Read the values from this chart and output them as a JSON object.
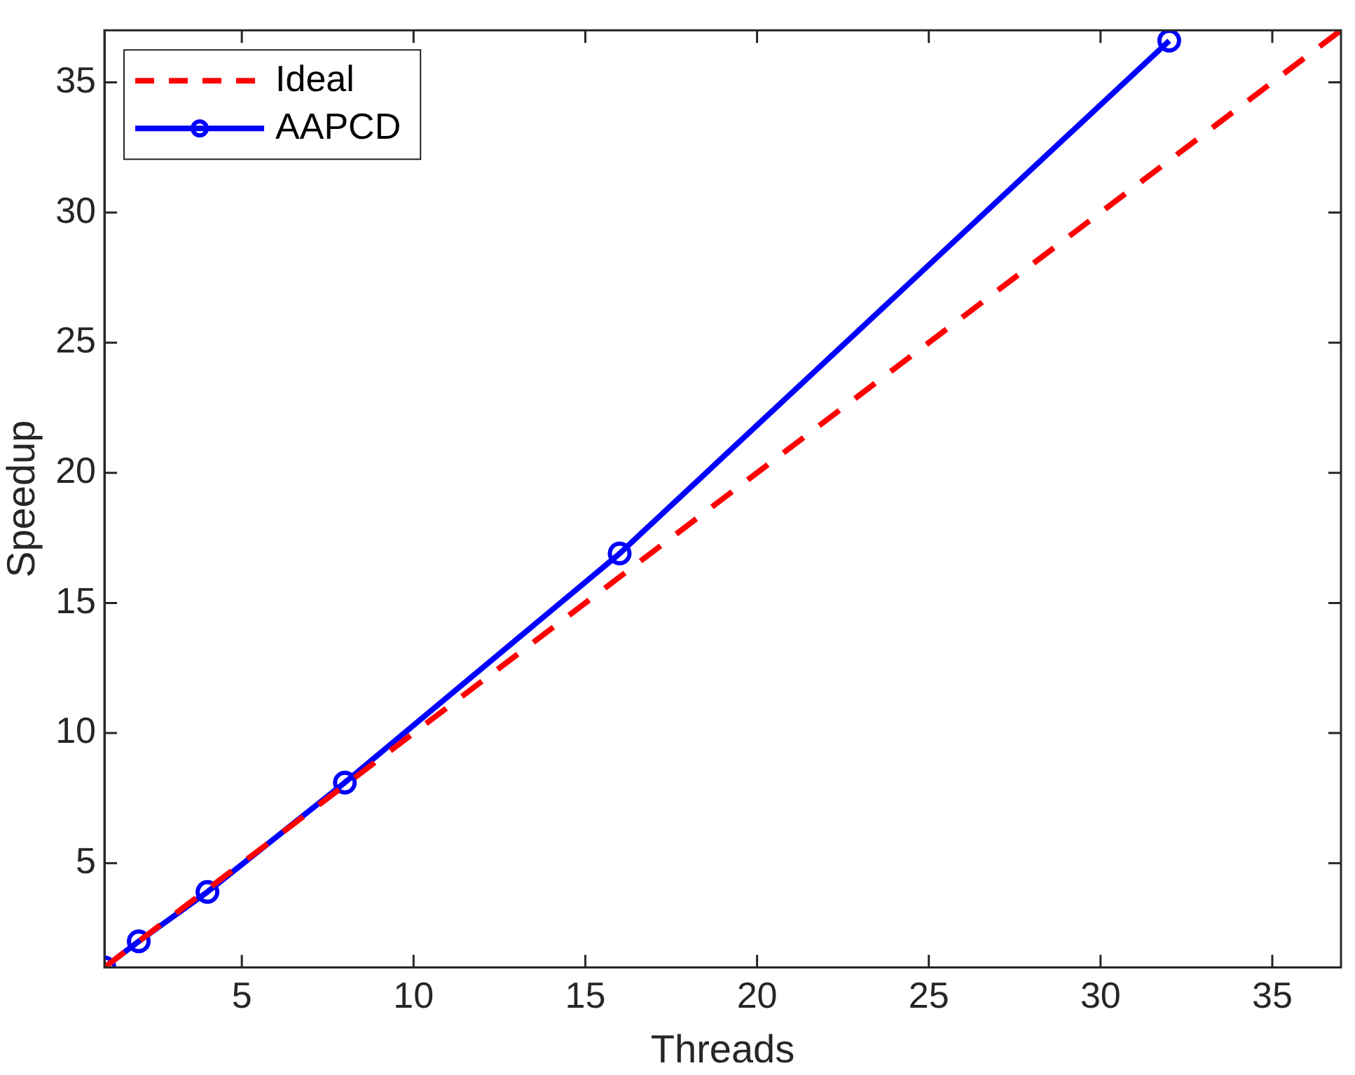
{
  "chart_data": {
    "type": "line",
    "xlabel": "Threads",
    "ylabel": "Speedup",
    "xlim": [
      1,
      37
    ],
    "ylim": [
      1,
      37
    ],
    "xticks": [
      5,
      10,
      15,
      20,
      25,
      30,
      35
    ],
    "yticks": [
      5,
      10,
      15,
      20,
      25,
      30,
      35
    ],
    "grid": false,
    "legend": "top left",
    "series": [
      {
        "name": "Ideal",
        "color": "#ff0000",
        "x": [
          1,
          37
        ],
        "values": [
          1,
          37
        ],
        "line_style": "dashed",
        "marker": "none"
      },
      {
        "name": "AAPCD",
        "color": "#0000ff",
        "x": [
          1,
          2,
          4,
          8,
          16,
          32
        ],
        "values": [
          1,
          2,
          3.9,
          8.1,
          16.9,
          36.6
        ],
        "line_style": "solid",
        "marker": "circle"
      }
    ]
  }
}
